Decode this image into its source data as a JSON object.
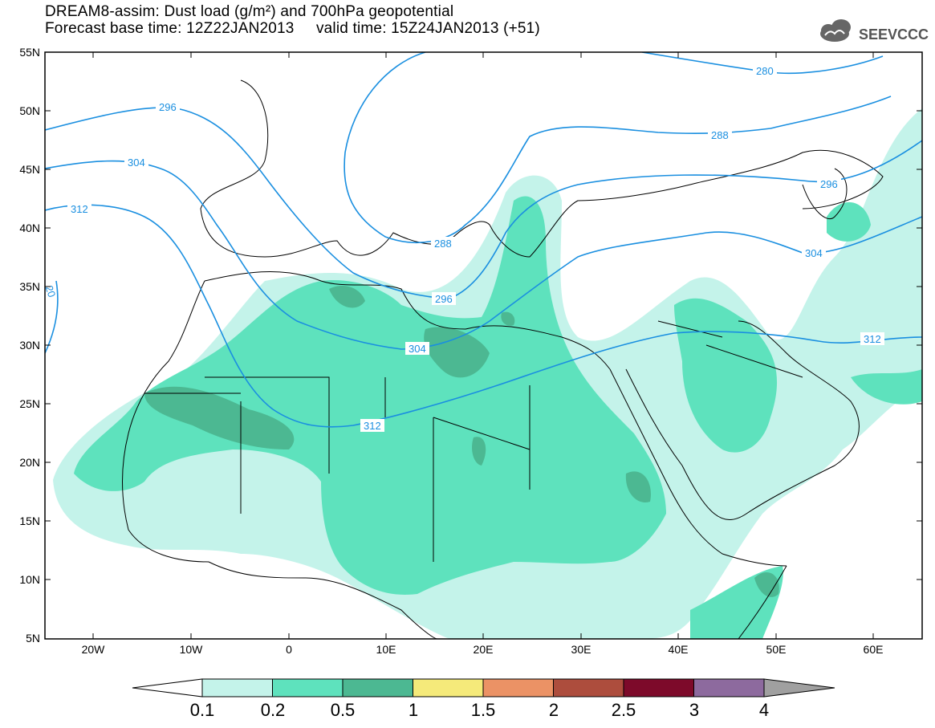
{
  "header": {
    "title_line1": "DREAM8-assim: Dust load (g/m²) and 700hPa geopotential",
    "title_line2": "Forecast base time: 12Z22JAN2013     valid time: 15Z24JAN2013 (+51)"
  },
  "logo": {
    "text": "SEEVCCC",
    "icon": "cloud-icon"
  },
  "map": {
    "lat_labels": [
      "55N",
      "50N",
      "45N",
      "40N",
      "35N",
      "30N",
      "25N",
      "20N",
      "15N",
      "10N",
      "5N"
    ],
    "lon_labels": [
      "20W",
      "10W",
      "0",
      "10E",
      "20E",
      "30E",
      "40E",
      "50E",
      "60E"
    ],
    "contour_labels": [
      "280",
      "288",
      "296",
      "304",
      "312",
      "296",
      "304",
      "312",
      "288",
      "296",
      "304",
      "312",
      "20"
    ],
    "colors": {
      "contour": "#1a8fe0",
      "coast": "#000000"
    }
  },
  "colorbar": {
    "labels": [
      "0.1",
      "0.2",
      "0.5",
      "1",
      "1.5",
      "2",
      "2.5",
      "3",
      "4"
    ],
    "colors": [
      "#c4f3ea",
      "#5ee2bd",
      "#4cb892",
      "#f5ea7a",
      "#eb9265",
      "#ad4d3d",
      "#7d0a2a",
      "#8d6a9e",
      "#a0a0a0"
    ]
  }
}
